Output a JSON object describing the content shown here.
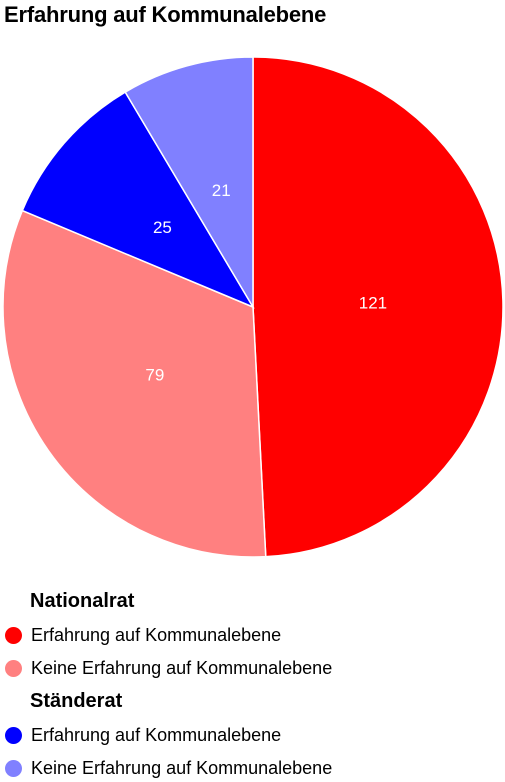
{
  "chart_data": {
    "type": "pie",
    "title": "Erfahrung auf Kommunalebene",
    "slices": [
      {
        "label": "Erfahrung auf Kommunalebene",
        "group": "Nationalrat",
        "value": 121,
        "color": "#ff0000"
      },
      {
        "label": "Keine Erfahrung auf Kommunalebene",
        "group": "Nationalrat",
        "value": 79,
        "color": "#ff8080"
      },
      {
        "label": "Erfahrung auf Kommunalebene",
        "group": "Ständerat",
        "value": 25,
        "color": "#0000ff"
      },
      {
        "label": "Keine Erfahrung auf Kommunalebene",
        "group": "Ständerat",
        "value": 21,
        "color": "#8080ff"
      }
    ],
    "legend": [
      {
        "group": "Nationalrat",
        "items": [
          {
            "label": "Erfahrung auf Kommunalebene",
            "color": "#ff0000"
          },
          {
            "label": "Keine Erfahrung auf Kommunalebene",
            "color": "#ff8080"
          }
        ]
      },
      {
        "group": "Ständerat",
        "items": [
          {
            "label": "Erfahrung auf Kommunalebene",
            "color": "#0000ff"
          },
          {
            "label": "Keine Erfahrung auf Kommunalebene",
            "color": "#8080ff"
          }
        ]
      }
    ],
    "legend_position": "bottom"
  }
}
